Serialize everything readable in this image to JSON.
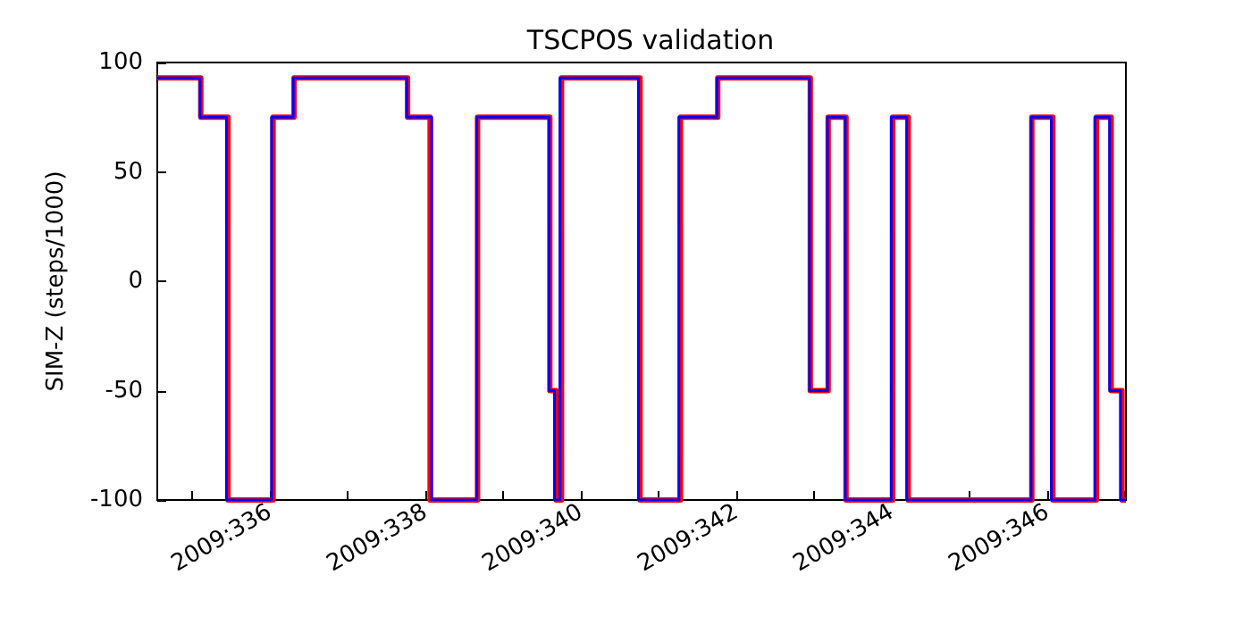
{
  "chart_data": {
    "type": "step",
    "title": "TSCPOS validation",
    "ylabel": "SIM-Z (steps/1000)",
    "xlim": [
      "2009-11-30T13:12",
      "2009-12-13T00:14"
    ],
    "ylim": [
      -100,
      100
    ],
    "xticks": [
      {
        "value": "2009-12-01",
        "label": null
      },
      {
        "value": "2009-12-02",
        "label": "2009:336"
      },
      {
        "value": "2009-12-03",
        "label": null
      },
      {
        "value": "2009-12-04",
        "label": "2009:338"
      },
      {
        "value": "2009-12-05",
        "label": null
      },
      {
        "value": "2009-12-06",
        "label": "2009:340"
      },
      {
        "value": "2009-12-07",
        "label": null
      },
      {
        "value": "2009-12-08",
        "label": "2009:342"
      },
      {
        "value": "2009-12-09",
        "label": null
      },
      {
        "value": "2009-12-10",
        "label": "2009:344"
      },
      {
        "value": "2009-12-11",
        "label": null
      },
      {
        "value": "2009-12-12",
        "label": "2009:346"
      },
      {
        "value": "2009-12-13",
        "label": null
      }
    ],
    "yticks": [
      -100,
      -50,
      0,
      50,
      100
    ],
    "grid": false,
    "series": [
      {
        "color": "#ff0000",
        "x": [
          "2009-11-30T13:12",
          "2009-12-01T02:38",
          "2009-12-01T11:02",
          "2009-12-02T00:58",
          "2009-12-02T07:26",
          "2009-12-03T18:29",
          "2009-12-04T01:26",
          "2009-12-04T16:05",
          "2009-12-05T14:24",
          "2009-12-05T16:19",
          "2009-12-05T18:00",
          "2009-12-06T18:14",
          "2009-12-07T06:43",
          "2009-12-07T18:14",
          "2009-12-08T22:48",
          "2009-12-09T04:19",
          "2009-12-09T09:50",
          "2009-12-10T00:14",
          "2009-12-10T05:02",
          "2009-12-11T19:12",
          "2009-12-12T01:41",
          "2009-12-12T15:07",
          "2009-12-12T19:41",
          "2009-12-12T23:02",
          "2009-12-13T00:14"
        ],
        "values": [
          93,
          75,
          -100,
          75,
          93,
          75,
          -100,
          75,
          -50,
          -100,
          93,
          -100,
          75,
          93,
          -50,
          75,
          -100,
          75,
          -100,
          75,
          -100,
          75,
          -50,
          -100,
          -100
        ]
      },
      {
        "color": "#0000ff",
        "x": [
          "2009-11-30T13:12",
          "2009-12-01T02:24",
          "2009-12-01T10:34",
          "2009-12-02T00:29",
          "2009-12-02T07:12",
          "2009-12-03T18:14",
          "2009-12-04T01:55",
          "2009-12-04T15:50",
          "2009-12-05T14:10",
          "2009-12-05T15:50",
          "2009-12-05T17:31",
          "2009-12-06T17:46",
          "2009-12-07T06:14",
          "2009-12-07T18:00",
          "2009-12-08T22:34",
          "2009-12-09T04:05",
          "2009-12-09T09:36",
          "2009-12-09T23:46",
          "2009-12-10T04:34",
          "2009-12-11T18:58",
          "2009-12-12T01:12",
          "2009-12-12T14:38",
          "2009-12-12T19:12",
          "2009-12-12T22:34",
          "2009-12-13T00:14"
        ],
        "values": [
          93,
          75,
          -100,
          75,
          93,
          75,
          -100,
          75,
          -50,
          -100,
          93,
          -100,
          75,
          93,
          -50,
          75,
          -100,
          75,
          -100,
          75,
          -100,
          75,
          -50,
          -100,
          -100
        ]
      }
    ]
  }
}
